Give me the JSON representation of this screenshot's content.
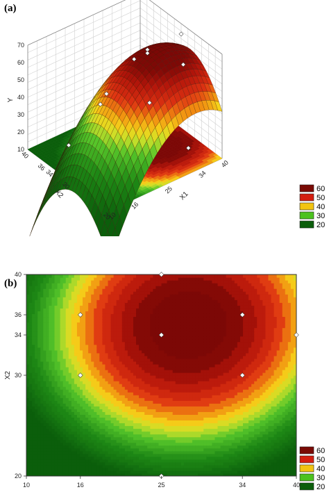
{
  "chart_data": [
    {
      "panel_label": "(a)",
      "type": "surface3d",
      "zlabel": "Y",
      "xlabel": "X1",
      "ylabel": "X2",
      "x_ticks": [
        "10",
        "16",
        "25",
        "34",
        "40"
      ],
      "y_ticks": [
        "20",
        "30",
        "34",
        "36",
        "40"
      ],
      "z_ticks": [
        "10",
        "20",
        "30",
        "40",
        "50",
        "60",
        "70"
      ],
      "zlim": [
        10,
        70
      ],
      "design_points": [
        {
          "x1": 10,
          "x2": 34,
          "y": 21
        },
        {
          "x1": 16,
          "x2": 30,
          "y": 28
        },
        {
          "x1": 16,
          "x2": 36,
          "y": 45
        },
        {
          "x1": 25,
          "x2": 20,
          "y": 30
        },
        {
          "x1": 25,
          "x2": 34,
          "y": 64
        },
        {
          "x1": 25,
          "x2": 34,
          "y": 62
        },
        {
          "x1": 25,
          "x2": 40,
          "y": 64
        },
        {
          "x1": 34,
          "x2": 30,
          "y": 50
        },
        {
          "x1": 34,
          "x2": 36,
          "y": 63
        },
        {
          "x1": 40,
          "x2": 34,
          "y": 25
        }
      ],
      "legend": {
        "levels": [
          "60",
          "50",
          "40",
          "30",
          "20"
        ],
        "colors": [
          "#7a0a05",
          "#d41e10",
          "#f2c411",
          "#4cc21f",
          "#0b5e0b"
        ]
      }
    },
    {
      "panel_label": "(b)",
      "type": "contour",
      "xlabel": "",
      "ylabel": "X2",
      "x_ticks": [
        "10",
        "16",
        "25",
        "34",
        "40"
      ],
      "y_ticks": [
        "20",
        "30",
        "34",
        "36",
        "40"
      ],
      "design_points": [
        {
          "x1": 16,
          "x2": 36
        },
        {
          "x1": 16,
          "x2": 30
        },
        {
          "x1": 25,
          "x2": 34
        },
        {
          "x1": 25,
          "x2": 40
        },
        {
          "x1": 25,
          "x2": 20
        },
        {
          "x1": 34,
          "x2": 36
        },
        {
          "x1": 34,
          "x2": 30
        },
        {
          "x1": 40,
          "x2": 34
        }
      ],
      "legend": {
        "levels": [
          "60",
          "50",
          "40",
          "30",
          "20"
        ],
        "colors": [
          "#7a0a05",
          "#d41e10",
          "#f2c411",
          "#4cc21f",
          "#0b5e0b"
        ]
      }
    }
  ]
}
